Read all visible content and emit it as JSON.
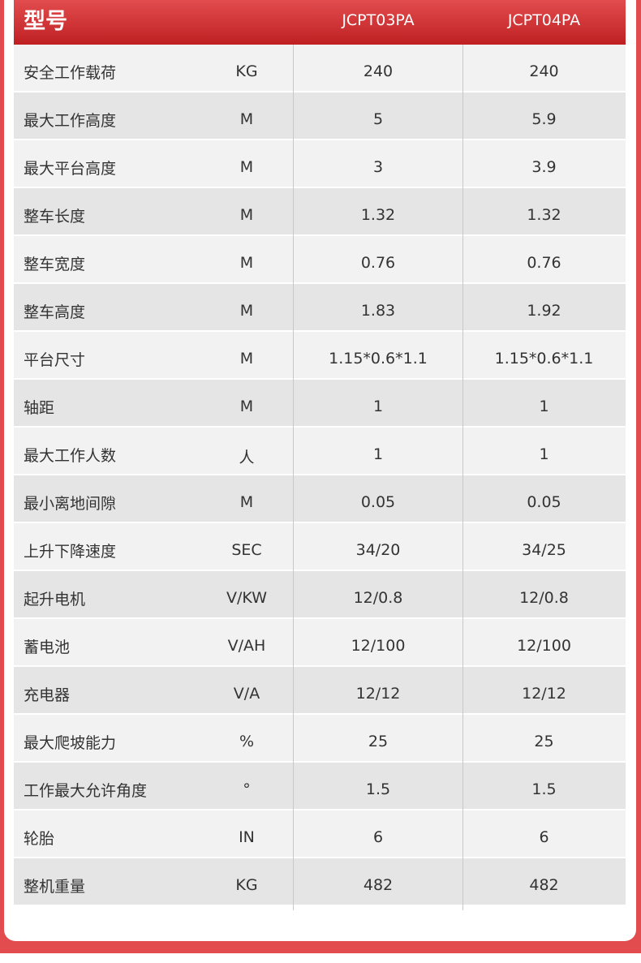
{
  "header": {
    "title": "型号",
    "models": [
      "JCPT03PA",
      "JCPT04PA"
    ]
  },
  "colors": {
    "accent": "#e24c4e",
    "header_dark": "#bf2022"
  },
  "rows": [
    {
      "label": "安全工作载荷",
      "unit": "KG",
      "v1": "240",
      "v2": "240"
    },
    {
      "label": "最大工作高度",
      "unit": "M",
      "v1": "5",
      "v2": "5.9"
    },
    {
      "label": "最大平台高度",
      "unit": "M",
      "v1": "3",
      "v2": "3.9"
    },
    {
      "label": "整车长度",
      "unit": "M",
      "v1": "1.32",
      "v2": "1.32"
    },
    {
      "label": "整车宽度",
      "unit": "M",
      "v1": "0.76",
      "v2": "0.76"
    },
    {
      "label": "整车高度",
      "unit": "M",
      "v1": "1.83",
      "v2": "1.92"
    },
    {
      "label": "平台尺寸",
      "unit": "M",
      "v1": "1.15*0.6*1.1",
      "v2": "1.15*0.6*1.1"
    },
    {
      "label": "轴距",
      "unit": "M",
      "v1": "1",
      "v2": "1"
    },
    {
      "label": "最大工作人数",
      "unit": "人",
      "v1": "1",
      "v2": "1"
    },
    {
      "label": "最小离地间隙",
      "unit": "M",
      "v1": "0.05",
      "v2": "0.05"
    },
    {
      "label": "上升下降速度",
      "unit": "SEC",
      "v1": "34/20",
      "v2": "34/25"
    },
    {
      "label": "起升电机",
      "unit": "V/KW",
      "v1": "12/0.8",
      "v2": "12/0.8"
    },
    {
      "label": "蓄电池",
      "unit": "V/AH",
      "v1": "12/100",
      "v2": "12/100"
    },
    {
      "label": "充电器",
      "unit": "V/A",
      "v1": "12/12",
      "v2": "12/12"
    },
    {
      "label": "最大爬坡能力",
      "unit": "%",
      "v1": "25",
      "v2": "25"
    },
    {
      "label": "工作最大允许角度",
      "unit": "°",
      "v1": "1.5",
      "v2": "1.5"
    },
    {
      "label": "轮胎",
      "unit": "IN",
      "v1": "6",
      "v2": "6"
    },
    {
      "label": "整机重量",
      "unit": "KG",
      "v1": "482",
      "v2": "482"
    }
  ]
}
